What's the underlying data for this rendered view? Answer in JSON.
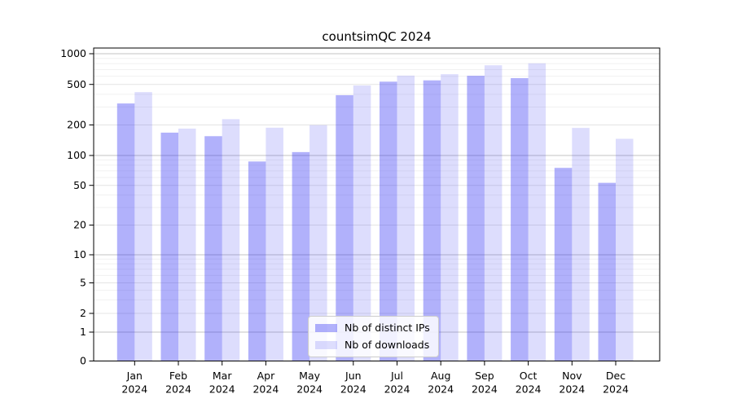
{
  "title": "countsimQC 2024",
  "legend": {
    "items": [
      {
        "label": "Nb of distinct IPs",
        "color": "rgba(40,40,245,0.36)"
      },
      {
        "label": "Nb of downloads",
        "color": "rgba(40,40,245,0.155)"
      }
    ]
  },
  "chart_data": {
    "type": "bar",
    "title": "countsimQC 2024",
    "categories": [
      "Jan 2024",
      "Feb 2024",
      "Mar 2024",
      "Apr 2024",
      "May 2024",
      "Jun 2024",
      "Jul 2024",
      "Aug 2024",
      "Sep 2024",
      "Oct 2024",
      "Nov 2024",
      "Dec 2024"
    ],
    "x_tick_line1": [
      "Jan",
      "Feb",
      "Mar",
      "Apr",
      "May",
      "Jun",
      "Jul",
      "Aug",
      "Sep",
      "Oct",
      "Nov",
      "Dec"
    ],
    "x_tick_line2": "2024",
    "series": [
      {
        "name": "Nb of distinct IPs",
        "color": "rgba(40,40,245,0.36)",
        "values": [
          325,
          168,
          155,
          87,
          108,
          392,
          532,
          548,
          608,
          576,
          75,
          53
        ]
      },
      {
        "name": "Nb of downloads",
        "color": "rgba(40,40,245,0.155)",
        "values": [
          420,
          184,
          228,
          188,
          199,
          488,
          610,
          630,
          770,
          805,
          187,
          146
        ]
      }
    ],
    "yscale": "symlog",
    "y_ticks": [
      1000,
      500,
      200,
      100,
      50,
      20,
      10,
      5,
      2,
      1,
      0
    ],
    "ylim": [
      0,
      1150
    ],
    "grid": true,
    "legend_position": "lower center"
  }
}
